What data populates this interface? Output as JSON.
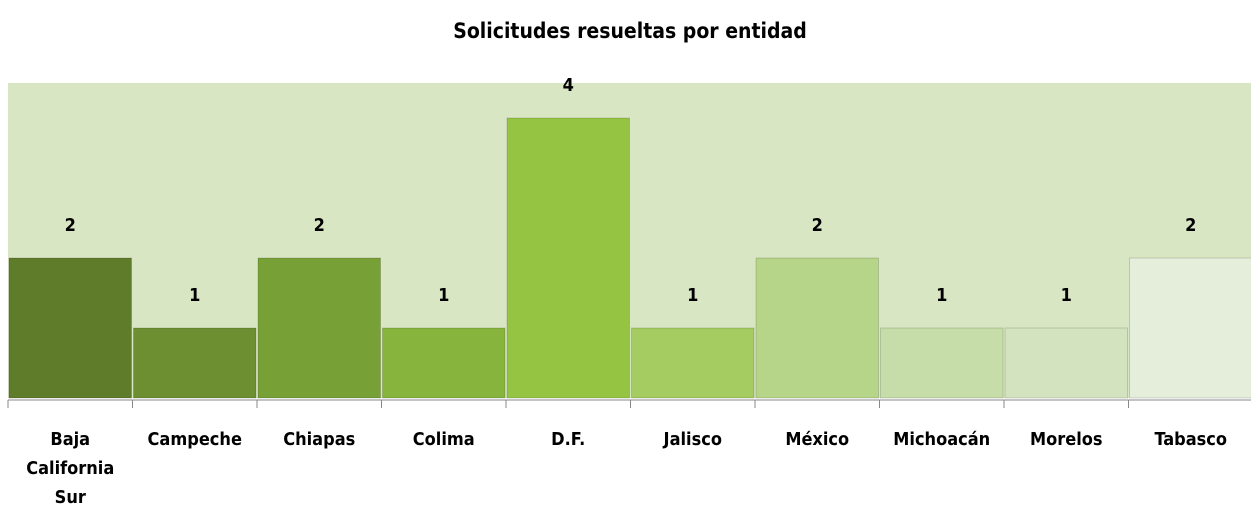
{
  "chart_data": {
    "type": "bar",
    "title": "Solicitudes resueltas por entidad",
    "categories": [
      "Baja California Sur",
      "Campeche",
      "Chiapas",
      "Colima",
      "D.F.",
      "Jalisco",
      "México",
      "Michoacán",
      "Morelos",
      "Tabasco"
    ],
    "values": [
      2,
      1,
      2,
      1,
      4,
      1,
      2,
      1,
      1,
      2
    ],
    "colors": [
      "#5f7c2b",
      "#6d8f31",
      "#77a136",
      "#86b43d",
      "#95c443",
      "#a5cc60",
      "#b6d589",
      "#c7dda9",
      "#d3e3bf",
      "#e5eddb"
    ],
    "ylim": [
      0,
      4.5
    ],
    "background": "#d9e6c3"
  }
}
